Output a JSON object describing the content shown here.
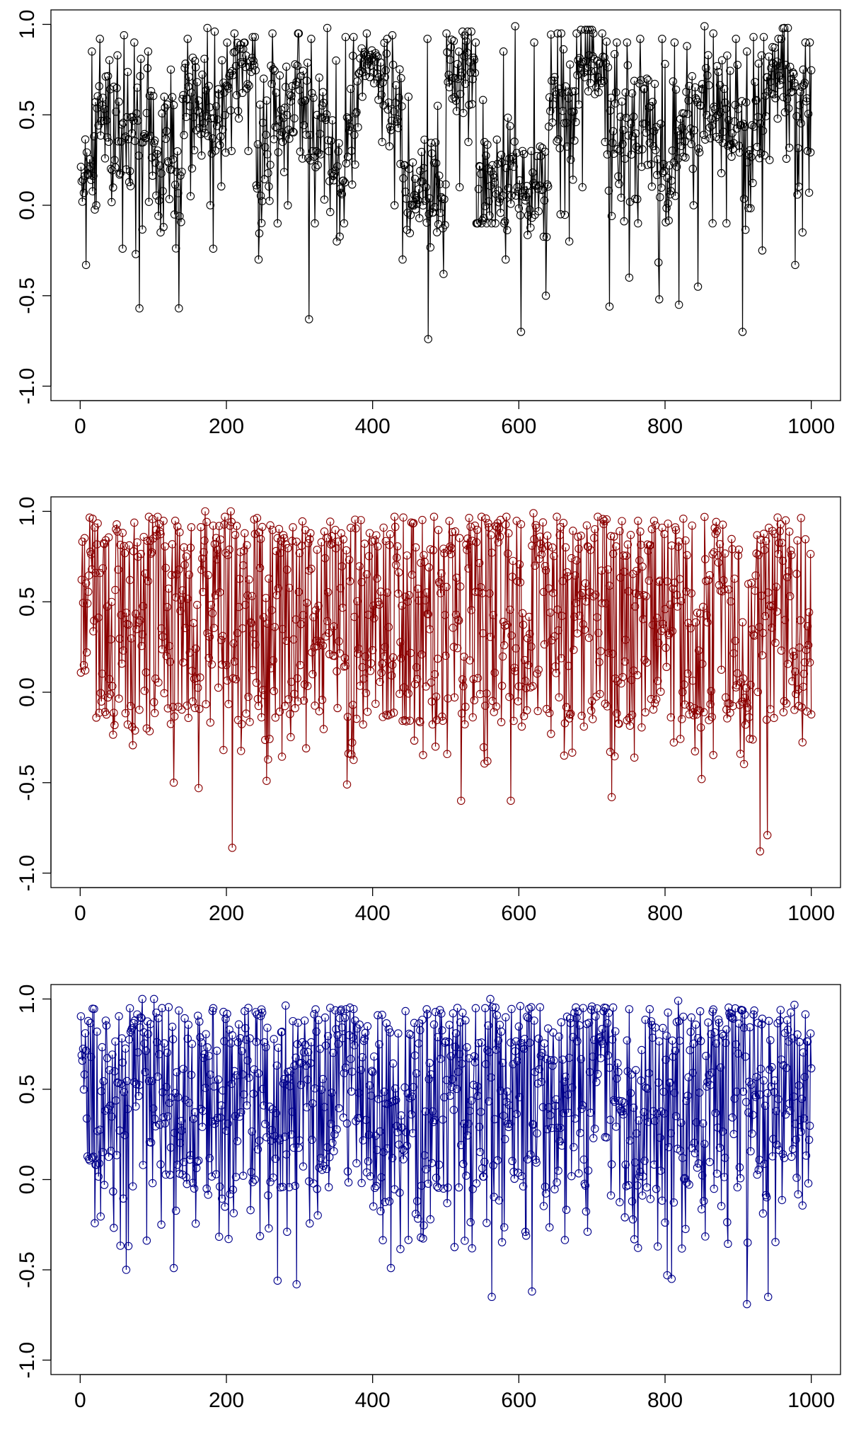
{
  "chart_data": [
    {
      "type": "line",
      "series_name": "panel-1",
      "style": "points-connected-by-lines",
      "color": "#000000",
      "title": "",
      "xlabel": "",
      "ylabel": "",
      "xlim": [
        0,
        1000
      ],
      "ylim": [
        -1,
        1
      ],
      "x_ticks": [
        "0",
        "200",
        "400",
        "600",
        "800",
        "1000"
      ],
      "y_ticks": [
        "-1.0",
        "-0.5",
        "0.0",
        "0.5",
        "1.0"
      ],
      "grid": false,
      "n_points": 1000,
      "values_per_segment": "approximate, 50 points each covering 20 x-units",
      "segments": [
        {
          "x_start": 1,
          "x_end": 20,
          "mean": 0.15,
          "spread": 0.25,
          "min": -0.33,
          "max": 0.85
        },
        {
          "x_start": 21,
          "x_end": 40,
          "mean": 0.55,
          "spread": 0.3,
          "min": 0.0,
          "max": 0.92
        },
        {
          "x_start": 41,
          "x_end": 60,
          "mean": 0.45,
          "spread": 0.35,
          "min": -0.24,
          "max": 0.94
        },
        {
          "x_start": 61,
          "x_end": 80,
          "mean": 0.35,
          "spread": 0.4,
          "min": -0.27,
          "max": 0.9
        },
        {
          "x_start": 81,
          "x_end": 100,
          "mean": 0.4,
          "spread": 0.45,
          "min": -0.57,
          "max": 0.85
        },
        {
          "x_start": 101,
          "x_end": 120,
          "mean": 0.2,
          "spread": 0.4,
          "min": -0.15,
          "max": 0.6
        },
        {
          "x_start": 121,
          "x_end": 140,
          "mean": 0.15,
          "spread": 0.45,
          "min": -0.57,
          "max": 0.75
        },
        {
          "x_start": 141,
          "x_end": 160,
          "mean": 0.55,
          "spread": 0.35,
          "min": 0.05,
          "max": 0.92
        },
        {
          "x_start": 161,
          "x_end": 180,
          "mean": 0.55,
          "spread": 0.35,
          "min": 0.0,
          "max": 0.98
        },
        {
          "x_start": 181,
          "x_end": 200,
          "mean": 0.5,
          "spread": 0.4,
          "min": -0.24,
          "max": 0.96
        },
        {
          "x_start": 201,
          "x_end": 220,
          "mean": 0.75,
          "spread": 0.2,
          "min": 0.3,
          "max": 0.95
        },
        {
          "x_start": 221,
          "x_end": 240,
          "mean": 0.75,
          "spread": 0.2,
          "min": 0.3,
          "max": 0.93
        },
        {
          "x_start": 241,
          "x_end": 260,
          "mean": 0.15,
          "spread": 0.4,
          "min": -0.3,
          "max": 0.7
        },
        {
          "x_start": 261,
          "x_end": 280,
          "mean": 0.5,
          "spread": 0.4,
          "min": -0.1,
          "max": 0.95
        },
        {
          "x_start": 281,
          "x_end": 300,
          "mean": 0.6,
          "spread": 0.35,
          "min": 0.0,
          "max": 0.95
        },
        {
          "x_start": 301,
          "x_end": 320,
          "mean": 0.4,
          "spread": 0.4,
          "min": -0.63,
          "max": 0.92
        },
        {
          "x_start": 321,
          "x_end": 340,
          "mean": 0.35,
          "spread": 0.4,
          "min": -0.1,
          "max": 0.98
        },
        {
          "x_start": 341,
          "x_end": 360,
          "mean": 0.2,
          "spread": 0.35,
          "min": -0.2,
          "max": 0.8
        },
        {
          "x_start": 361,
          "x_end": 380,
          "mean": 0.45,
          "spread": 0.4,
          "min": -0.1,
          "max": 0.93
        },
        {
          "x_start": 381,
          "x_end": 400,
          "mean": 0.8,
          "spread": 0.1,
          "min": 0.6,
          "max": 0.95
        },
        {
          "x_start": 401,
          "x_end": 420,
          "mean": 0.75,
          "spread": 0.15,
          "min": 0.35,
          "max": 0.92
        },
        {
          "x_start": 421,
          "x_end": 440,
          "mean": 0.5,
          "spread": 0.35,
          "min": 0.0,
          "max": 0.94
        },
        {
          "x_start": 441,
          "x_end": 460,
          "mean": 0.05,
          "spread": 0.2,
          "min": -0.3,
          "max": 0.6
        },
        {
          "x_start": 461,
          "x_end": 480,
          "mean": 0.05,
          "spread": 0.35,
          "min": -0.74,
          "max": 0.92
        },
        {
          "x_start": 481,
          "x_end": 500,
          "mean": 0.05,
          "spread": 0.3,
          "min": -0.38,
          "max": 0.55
        },
        {
          "x_start": 501,
          "x_end": 520,
          "mean": 0.7,
          "spread": 0.25,
          "min": 0.1,
          "max": 0.95
        },
        {
          "x_start": 521,
          "x_end": 540,
          "mean": 0.75,
          "spread": 0.2,
          "min": 0.35,
          "max": 0.96
        },
        {
          "x_start": 541,
          "x_end": 560,
          "mean": 0.2,
          "spread": 0.4,
          "min": -0.1,
          "max": 0.9
        },
        {
          "x_start": 561,
          "x_end": 580,
          "mean": 0.1,
          "spread": 0.3,
          "min": -0.1,
          "max": 0.85
        },
        {
          "x_start": 581,
          "x_end": 600,
          "mean": 0.2,
          "spread": 0.3,
          "min": -0.3,
          "max": 0.99
        },
        {
          "x_start": 601,
          "x_end": 620,
          "mean": 0.0,
          "spread": 0.3,
          "min": -0.7,
          "max": 0.3
        },
        {
          "x_start": 621,
          "x_end": 640,
          "mean": 0.15,
          "spread": 0.35,
          "min": -0.5,
          "max": 0.9
        },
        {
          "x_start": 641,
          "x_end": 660,
          "mean": 0.55,
          "spread": 0.35,
          "min": -0.05,
          "max": 0.95
        },
        {
          "x_start": 661,
          "x_end": 680,
          "mean": 0.4,
          "spread": 0.4,
          "min": -0.2,
          "max": 0.95
        },
        {
          "x_start": 681,
          "x_end": 700,
          "mean": 0.75,
          "spread": 0.25,
          "min": 0.1,
          "max": 0.97
        },
        {
          "x_start": 701,
          "x_end": 720,
          "mean": 0.75,
          "spread": 0.2,
          "min": 0.35,
          "max": 0.95
        },
        {
          "x_start": 721,
          "x_end": 740,
          "mean": 0.3,
          "spread": 0.4,
          "min": -0.56,
          "max": 0.9
        },
        {
          "x_start": 741,
          "x_end": 760,
          "mean": 0.4,
          "spread": 0.4,
          "min": -0.4,
          "max": 0.9
        },
        {
          "x_start": 761,
          "x_end": 780,
          "mean": 0.45,
          "spread": 0.35,
          "min": -0.1,
          "max": 0.92
        },
        {
          "x_start": 781,
          "x_end": 800,
          "mean": 0.2,
          "spread": 0.45,
          "min": -0.52,
          "max": 0.92
        },
        {
          "x_start": 801,
          "x_end": 820,
          "mean": 0.15,
          "spread": 0.45,
          "min": -0.55,
          "max": 0.9
        },
        {
          "x_start": 821,
          "x_end": 840,
          "mean": 0.5,
          "spread": 0.35,
          "min": 0.0,
          "max": 0.88
        },
        {
          "x_start": 841,
          "x_end": 860,
          "mean": 0.6,
          "spread": 0.35,
          "min": -0.45,
          "max": 0.99
        },
        {
          "x_start": 861,
          "x_end": 880,
          "mean": 0.55,
          "spread": 0.35,
          "min": -0.1,
          "max": 0.95
        },
        {
          "x_start": 881,
          "x_end": 900,
          "mean": 0.5,
          "spread": 0.35,
          "min": -0.1,
          "max": 0.92
        },
        {
          "x_start": 901,
          "x_end": 920,
          "mean": 0.3,
          "spread": 0.45,
          "min": -0.7,
          "max": 0.85
        },
        {
          "x_start": 921,
          "x_end": 940,
          "mean": 0.5,
          "spread": 0.4,
          "min": -0.25,
          "max": 0.93
        },
        {
          "x_start": 941,
          "x_end": 960,
          "mean": 0.75,
          "spread": 0.2,
          "min": 0.25,
          "max": 0.92
        },
        {
          "x_start": 961,
          "x_end": 980,
          "mean": 0.6,
          "spread": 0.4,
          "min": -0.33,
          "max": 0.98
        },
        {
          "x_start": 981,
          "x_end": 1000,
          "mean": 0.5,
          "spread": 0.4,
          "min": -0.15,
          "max": 0.9
        }
      ]
    },
    {
      "type": "line",
      "series_name": "panel-2",
      "style": "points-connected-by-lines",
      "color": "#8b0000",
      "title": "",
      "xlabel": "",
      "ylabel": "",
      "xlim": [
        0,
        1000
      ],
      "ylim": [
        -1,
        1
      ],
      "x_ticks": [
        "0",
        "200",
        "400",
        "600",
        "800",
        "1000"
      ],
      "y_ticks": [
        "-1.0",
        "-0.5",
        "0.0",
        "0.5",
        "1.0"
      ],
      "grid": false,
      "n_points": 1000,
      "overall": {
        "mean": 0.4,
        "spread": 0.4,
        "min": -0.89,
        "max": 1.0
      },
      "notable_points": [
        {
          "x": 208,
          "y": -0.86
        },
        {
          "x": 930,
          "y": -0.88
        },
        {
          "x": 940,
          "y": -0.79
        },
        {
          "x": 521,
          "y": -0.6
        },
        {
          "x": 589,
          "y": -0.6
        },
        {
          "x": 727,
          "y": -0.58
        },
        {
          "x": 162,
          "y": -0.53
        },
        {
          "x": 128,
          "y": -0.5
        },
        {
          "x": 255,
          "y": -0.49
        },
        {
          "x": 365,
          "y": -0.51
        },
        {
          "x": 850,
          "y": -0.48
        },
        {
          "x": 171,
          "y": 1.0
        },
        {
          "x": 206,
          "y": 1.0
        },
        {
          "x": 620,
          "y": 0.99
        }
      ]
    },
    {
      "type": "line",
      "series_name": "panel-3",
      "style": "points-connected-by-lines",
      "color": "#00008b",
      "title": "",
      "xlabel": "",
      "ylabel": "",
      "xlim": [
        0,
        1000
      ],
      "ylim": [
        -1,
        1
      ],
      "x_ticks": [
        "0",
        "200",
        "400",
        "600",
        "800",
        "1000"
      ],
      "y_ticks": [
        "-1.0",
        "-0.5",
        "0.0",
        "0.5",
        "1.0"
      ],
      "grid": false,
      "n_points": 1000,
      "overall": {
        "mean": 0.45,
        "spread": 0.35,
        "min": -0.7,
        "max": 1.0
      },
      "notable_points": [
        {
          "x": 912,
          "y": -0.69
        },
        {
          "x": 941,
          "y": -0.65
        },
        {
          "x": 563,
          "y": -0.65
        },
        {
          "x": 618,
          "y": -0.62
        },
        {
          "x": 296,
          "y": -0.58
        },
        {
          "x": 270,
          "y": -0.56
        },
        {
          "x": 803,
          "y": -0.53
        },
        {
          "x": 809,
          "y": -0.55
        },
        {
          "x": 63,
          "y": -0.5
        },
        {
          "x": 128,
          "y": -0.49
        },
        {
          "x": 425,
          "y": -0.49
        },
        {
          "x": 85,
          "y": 1.0
        },
        {
          "x": 101,
          "y": 1.0
        },
        {
          "x": 561,
          "y": 1.0
        },
        {
          "x": 818,
          "y": 0.99
        }
      ]
    }
  ]
}
